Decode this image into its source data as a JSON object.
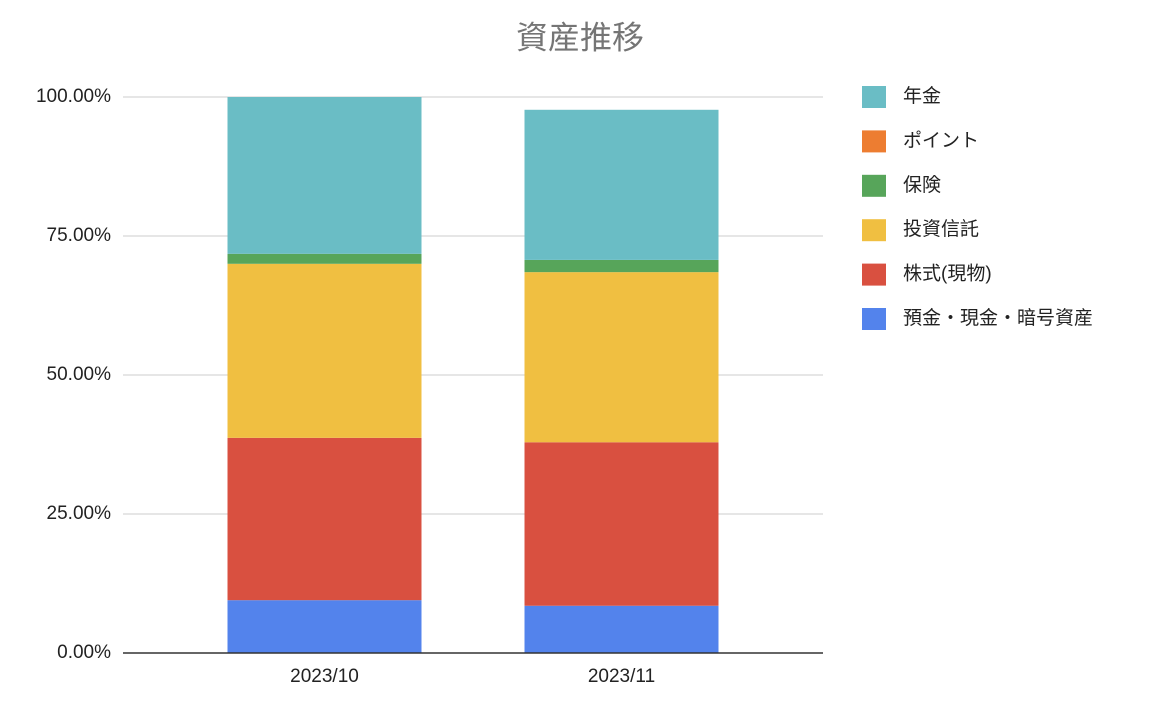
{
  "chart_data": {
    "type": "stacked_bar",
    "title": "資産推移",
    "categories": [
      "2023/10",
      "2023/11"
    ],
    "series": [
      {
        "name": "預金・現金・暗号資産",
        "color": "#5383ec",
        "values": [
          9.5,
          8.5
        ]
      },
      {
        "name": "株式(現物)",
        "color": "#d95040",
        "values": [
          29.2,
          29.4
        ]
      },
      {
        "name": "投資信託",
        "color": "#f0bf41",
        "values": [
          31.3,
          30.6
        ]
      },
      {
        "name": "保険",
        "color": "#57a55a",
        "values": [
          1.8,
          2.2
        ]
      },
      {
        "name": "ポイント",
        "color": "#ed7d31",
        "values": [
          0,
          0
        ]
      },
      {
        "name": "年金",
        "color": "#6abdc5",
        "values": [
          28.2,
          27.0
        ]
      }
    ],
    "ylim": [
      0,
      100
    ],
    "yticks": [
      {
        "value": 0,
        "label": "0.00%"
      },
      {
        "value": 25,
        "label": "25.00%"
      },
      {
        "value": 50,
        "label": "50.00%"
      },
      {
        "value": 75,
        "label": "75.00%"
      },
      {
        "value": 100,
        "label": "100.00%"
      }
    ],
    "grid": true,
    "legend": "right"
  }
}
